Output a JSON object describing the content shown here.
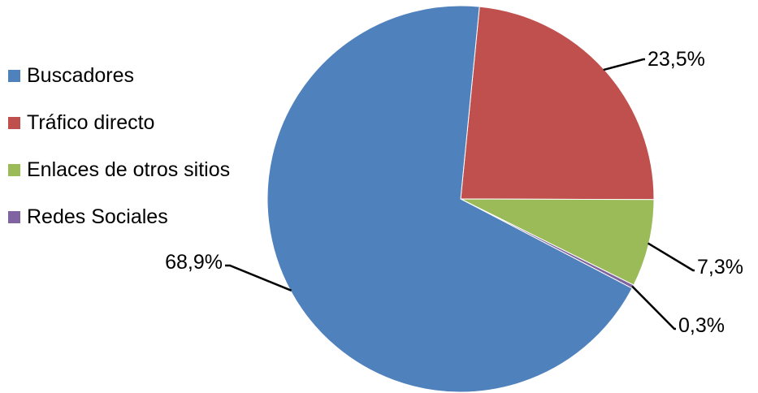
{
  "chart_data": {
    "type": "pie",
    "title": "",
    "legend_position": "left",
    "series": [
      {
        "name": "",
        "labels": [
          "Buscadores",
          "Tráfico directo",
          "Enlaces de otros sitios",
          "Redes Sociales"
        ],
        "values": [
          68.9,
          23.5,
          7.3,
          0.3
        ],
        "data_labels": [
          "68,9%",
          "23,5%",
          "7,3%",
          "0,3%"
        ],
        "colors": [
          "#4F81BD",
          "#C0504D",
          "#9BBB59",
          "#8064A2"
        ]
      }
    ]
  }
}
